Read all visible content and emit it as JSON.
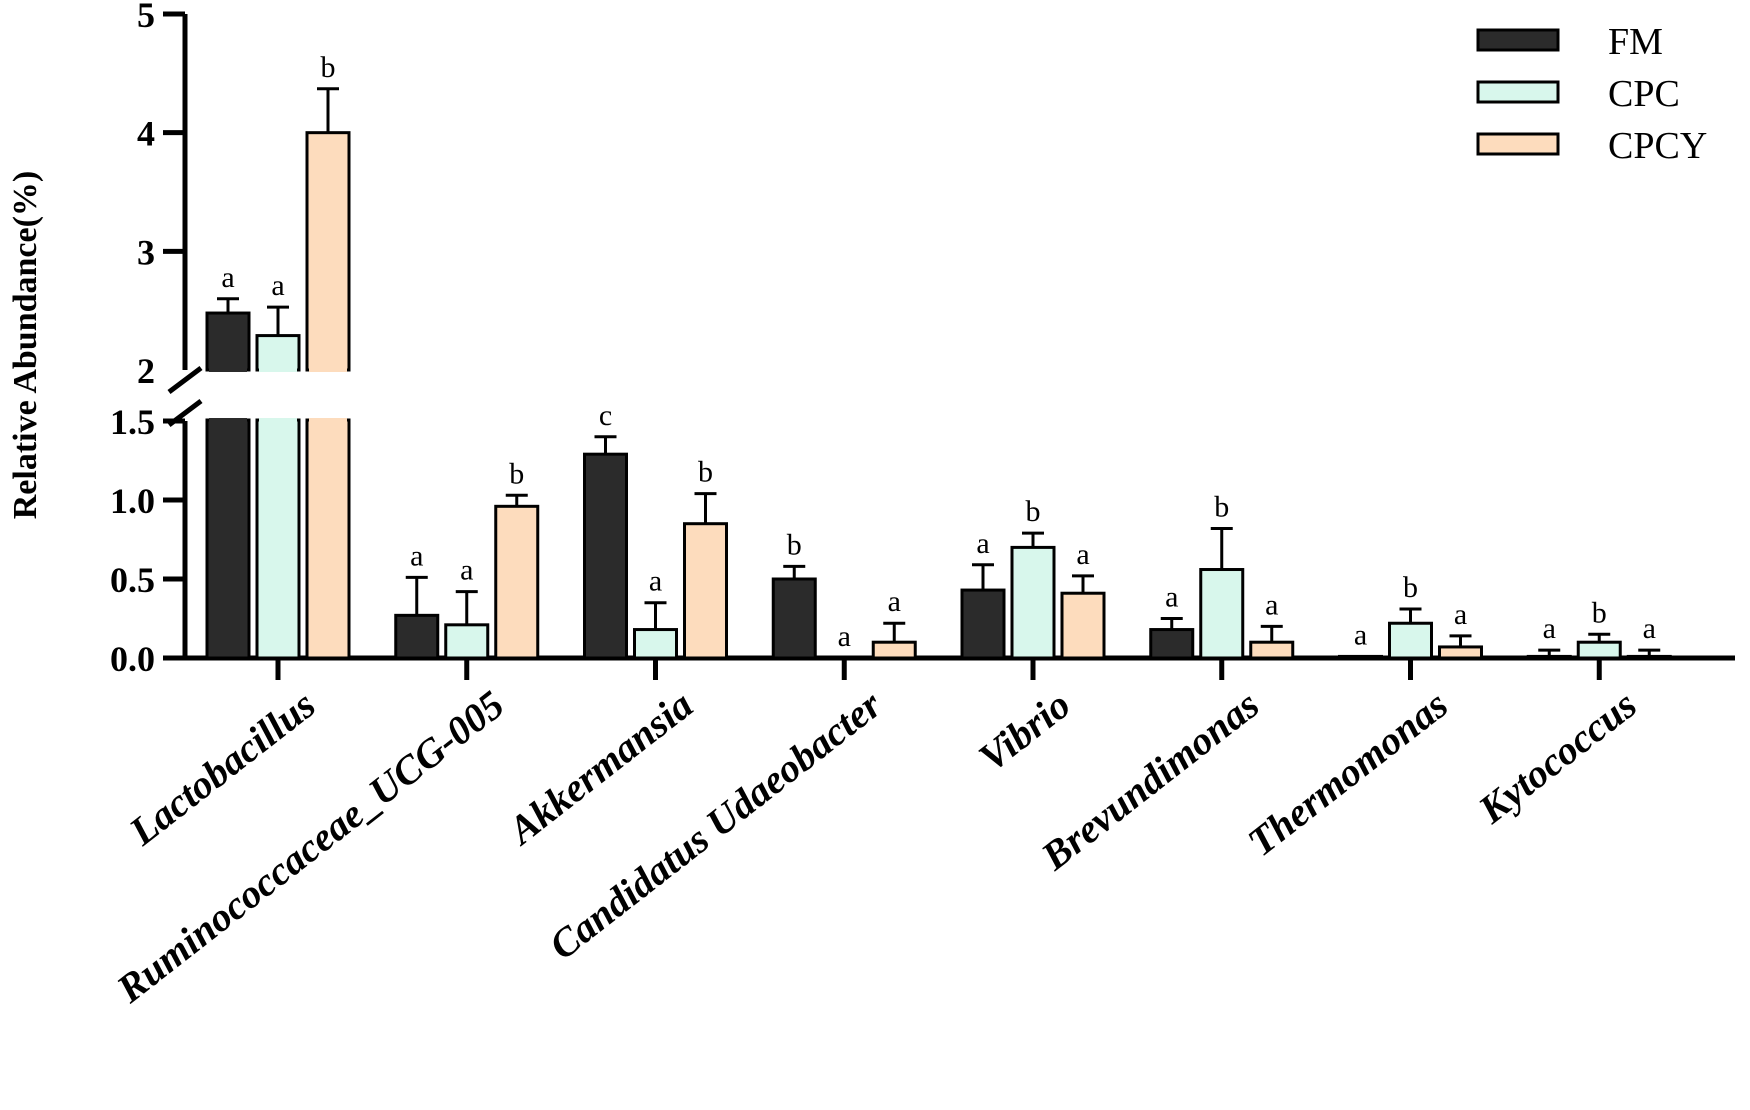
{
  "chart_data": {
    "type": "bar",
    "ylabel": "Relative Abundance(%)",
    "title": "",
    "categories": [
      "Lactobacillus",
      "Ruminococcaceae_UCG-005",
      "Akkermansia",
      "Candidatus Udaeobacter",
      "Vibrio",
      "Brevundimonas",
      "Thermomonas",
      "Kytococcus"
    ],
    "series": [
      {
        "name": "FM",
        "color": "#2b2b2b",
        "values": [
          2.48,
          0.27,
          1.29,
          0.5,
          0.43,
          0.18,
          0.01,
          0.01
        ],
        "errors": [
          0.12,
          0.24,
          0.11,
          0.08,
          0.16,
          0.07,
          0.0,
          0.04
        ],
        "sig": [
          "a",
          "a",
          "c",
          "b",
          "a",
          "a",
          "a",
          "a"
        ]
      },
      {
        "name": "CPC",
        "color": "#d8f7ec",
        "values": [
          2.29,
          0.21,
          0.18,
          0.0,
          0.7,
          0.56,
          0.22,
          0.1
        ],
        "errors": [
          0.24,
          0.21,
          0.17,
          0.0,
          0.09,
          0.26,
          0.09,
          0.05
        ],
        "sig": [
          "a",
          "a",
          "a",
          "a",
          "b",
          "b",
          "b",
          "b"
        ]
      },
      {
        "name": "CPCY",
        "color": "#fddcbd",
        "values": [
          4.0,
          0.96,
          0.85,
          0.1,
          0.41,
          0.1,
          0.07,
          0.01
        ],
        "errors": [
          0.37,
          0.07,
          0.19,
          0.12,
          0.11,
          0.1,
          0.07,
          0.04
        ],
        "sig": [
          "b",
          "b",
          "b",
          "a",
          "a",
          "a",
          "a",
          "a"
        ]
      }
    ],
    "y_axis": {
      "lower_range": [
        0,
        1.5
      ],
      "upper_range": [
        2,
        5
      ],
      "lower_ticks": [
        "0.0",
        "0.5",
        "1.0",
        "1.5"
      ],
      "upper_ticks": [
        "2",
        "3",
        "4",
        "5"
      ],
      "broken": true
    },
    "legend_position": "top-right",
    "grid": false
  }
}
